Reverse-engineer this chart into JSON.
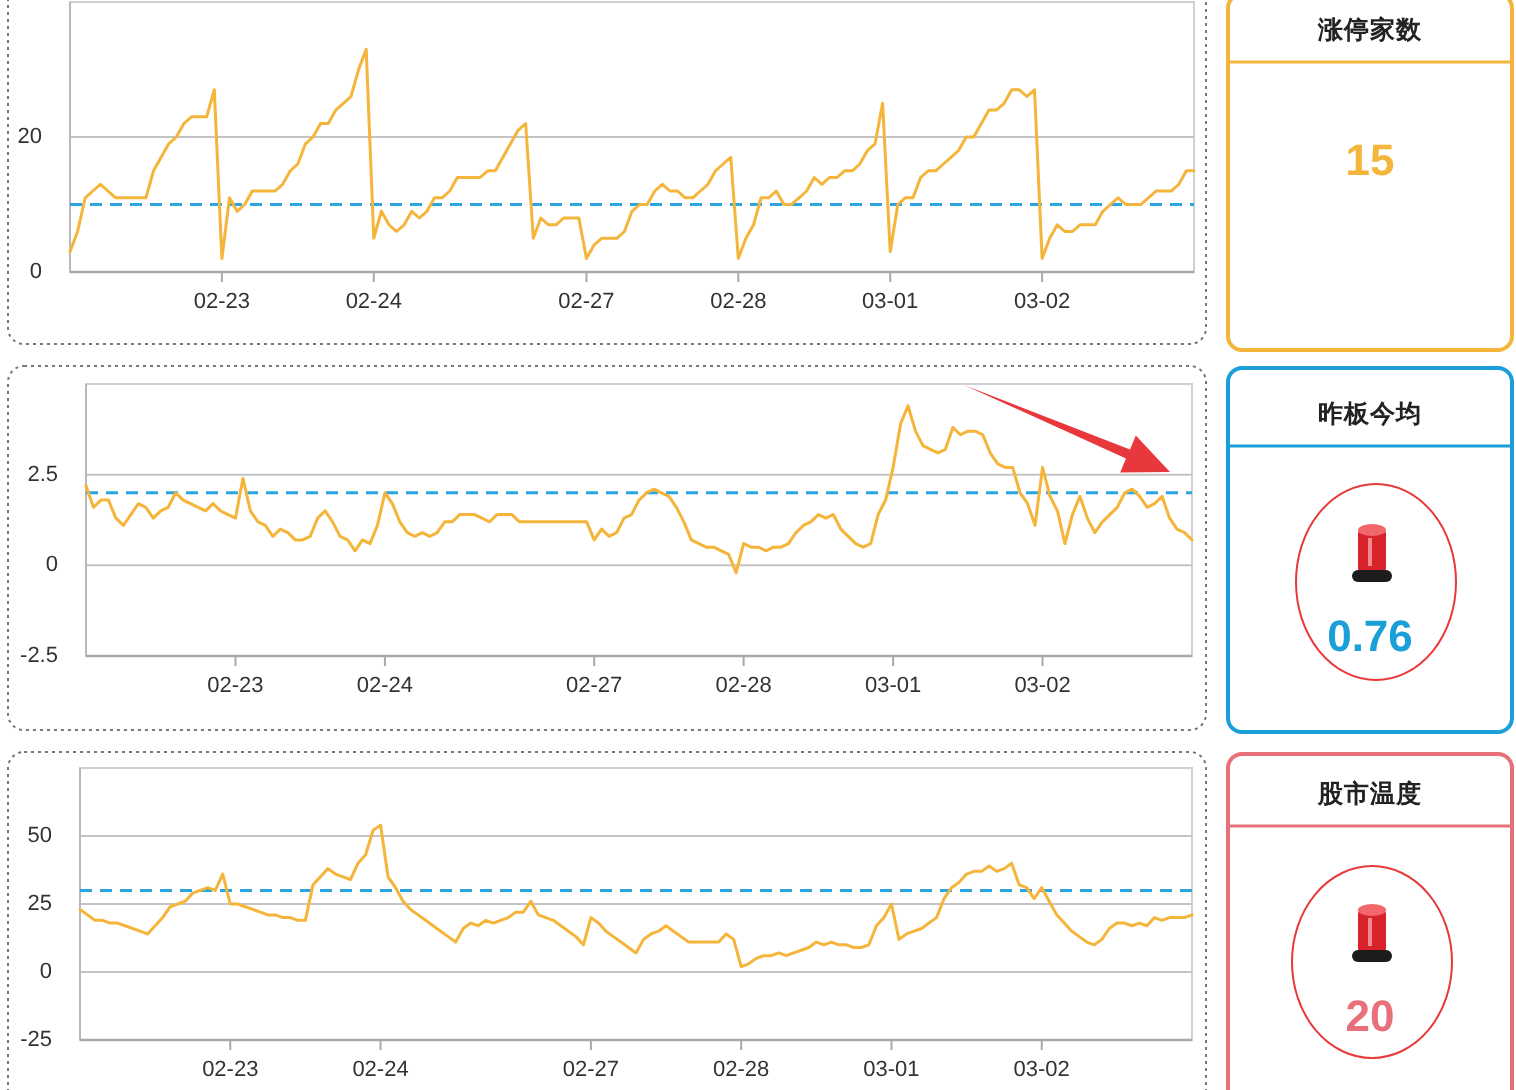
{
  "chart_data": [
    {
      "type": "line",
      "categories": [
        null,
        null,
        null,
        null,
        null,
        null,
        null,
        null,
        null,
        null,
        null,
        null,
        null,
        null,
        null,
        null,
        null,
        null,
        null,
        null,
        "02-23",
        null,
        null,
        null,
        null,
        null,
        null,
        null,
        null,
        null,
        null,
        null,
        null,
        null,
        null,
        null,
        null,
        null,
        null,
        null,
        "02-24",
        null,
        null,
        null,
        null,
        null,
        null,
        null,
        null,
        null,
        null,
        null,
        null,
        null,
        null,
        null,
        null,
        null,
        null,
        null,
        null,
        null,
        null,
        null,
        null,
        null,
        null,
        null,
        "02-27",
        null,
        null,
        null,
        null,
        null,
        null,
        null,
        null,
        null,
        null,
        null,
        null,
        null,
        null,
        null,
        null,
        null,
        null,
        null,
        "02-28",
        null,
        null,
        null,
        null,
        null,
        null,
        null,
        null,
        null,
        null,
        null,
        null,
        null,
        null,
        null,
        null,
        null,
        null,
        null,
        "03-01",
        null,
        null,
        null,
        null,
        null,
        null,
        null,
        null,
        null,
        null,
        null,
        null,
        null,
        null,
        null,
        null,
        null,
        null,
        null,
        "03-02",
        null,
        null,
        null,
        null,
        null,
        null,
        null,
        null,
        null,
        null,
        null,
        null,
        null,
        null,
        null,
        null,
        null,
        null,
        null,
        null
      ],
      "series": [
        {
          "color": "#f5b43a",
          "values": [
            3,
            6,
            11,
            12,
            13,
            12,
            11,
            11,
            11,
            11,
            11,
            15,
            17,
            19,
            20,
            22,
            23,
            23,
            23,
            27,
            2,
            11,
            9,
            10,
            12,
            12,
            12,
            12,
            13,
            15,
            16,
            19,
            20,
            22,
            22,
            24,
            25,
            26,
            30,
            33,
            5,
            9,
            7,
            6,
            7,
            9,
            8,
            9,
            11,
            11,
            12,
            14,
            14,
            14,
            14,
            15,
            15,
            17,
            19,
            21,
            22,
            5,
            8,
            7,
            7,
            8,
            8,
            8,
            2,
            4,
            5,
            5,
            5,
            6,
            9,
            10,
            10,
            12,
            13,
            12,
            12,
            11,
            11,
            12,
            13,
            15,
            16,
            17,
            2,
            5,
            7,
            11,
            11,
            12,
            10,
            10,
            11,
            12,
            14,
            13,
            14,
            14,
            15,
            15,
            16,
            18,
            19,
            25,
            3,
            10,
            11,
            11,
            14,
            15,
            15,
            16,
            17,
            18,
            20,
            20,
            22,
            24,
            24,
            25,
            27,
            27,
            26,
            27,
            2,
            5,
            7,
            6,
            6,
            7,
            7,
            7,
            9,
            10,
            11,
            10,
            10,
            10,
            11,
            12,
            12,
            12,
            13,
            15,
            15
          ]
        }
      ],
      "ylim": [
        0,
        40
      ],
      "yticks": [
        0,
        20
      ],
      "grid": "y",
      "ref_lines": [
        {
          "axis": "y",
          "value": 10,
          "color": "#2ba5e0",
          "line_style": "dashed"
        }
      ]
    },
    {
      "type": "other",
      "title": "涨停家数",
      "annotations": [
        "15"
      ]
    },
    {
      "type": "line",
      "categories": [
        null,
        null,
        null,
        null,
        null,
        null,
        null,
        null,
        null,
        null,
        null,
        null,
        null,
        null,
        null,
        null,
        null,
        null,
        null,
        null,
        "02-23",
        null,
        null,
        null,
        null,
        null,
        null,
        null,
        null,
        null,
        null,
        null,
        null,
        null,
        null,
        null,
        null,
        null,
        null,
        null,
        "02-24",
        null,
        null,
        null,
        null,
        null,
        null,
        null,
        null,
        null,
        null,
        null,
        null,
        null,
        null,
        null,
        null,
        null,
        null,
        null,
        null,
        null,
        null,
        null,
        null,
        null,
        null,
        null,
        "02-27",
        null,
        null,
        null,
        null,
        null,
        null,
        null,
        null,
        null,
        null,
        null,
        null,
        null,
        null,
        null,
        null,
        null,
        null,
        null,
        "02-28",
        null,
        null,
        null,
        null,
        null,
        null,
        null,
        null,
        null,
        null,
        null,
        null,
        null,
        null,
        null,
        null,
        null,
        null,
        null,
        "03-01",
        null,
        null,
        null,
        null,
        null,
        null,
        null,
        null,
        null,
        null,
        null,
        null,
        null,
        null,
        null,
        null,
        null,
        null,
        null,
        "03-02",
        null,
        null,
        null,
        null,
        null,
        null,
        null,
        null,
        null,
        null,
        null,
        null,
        null,
        null,
        null,
        null,
        null,
        null,
        null,
        null
      ],
      "series": [
        {
          "color": "#f5b43a",
          "values": [
            2.2,
            1.6,
            1.8,
            1.8,
            1.3,
            1.1,
            1.4,
            1.7,
            1.6,
            1.3,
            1.5,
            1.6,
            2.0,
            1.8,
            1.7,
            1.6,
            1.5,
            1.7,
            1.5,
            1.4,
            1.3,
            2.4,
            1.5,
            1.2,
            1.1,
            0.8,
            1.0,
            0.9,
            0.7,
            0.7,
            0.8,
            1.3,
            1.5,
            1.2,
            0.8,
            0.7,
            0.4,
            0.7,
            0.6,
            1.1,
            2.0,
            1.7,
            1.2,
            0.9,
            0.8,
            0.9,
            0.8,
            0.9,
            1.2,
            1.2,
            1.4,
            1.4,
            1.4,
            1.3,
            1.2,
            1.4,
            1.4,
            1.4,
            1.2,
            1.2,
            1.2,
            1.2,
            1.2,
            1.2,
            1.2,
            1.2,
            1.2,
            1.2,
            0.7,
            1.0,
            0.8,
            0.9,
            1.3,
            1.4,
            1.8,
            2.0,
            2.1,
            2.0,
            1.9,
            1.6,
            1.2,
            0.7,
            0.6,
            0.5,
            0.5,
            0.4,
            0.3,
            -0.2,
            0.6,
            0.5,
            0.5,
            0.4,
            0.5,
            0.5,
            0.6,
            0.9,
            1.1,
            1.2,
            1.4,
            1.3,
            1.4,
            1.0,
            0.8,
            0.6,
            0.5,
            0.6,
            1.4,
            1.8,
            2.7,
            3.9,
            4.4,
            3.7,
            3.3,
            3.2,
            3.1,
            3.2,
            3.8,
            3.6,
            3.7,
            3.7,
            3.6,
            3.1,
            2.8,
            2.7,
            2.7,
            2.0,
            1.7,
            1.1,
            2.7,
            1.9,
            1.5,
            0.6,
            1.4,
            1.9,
            1.3,
            0.9,
            1.2,
            1.4,
            1.6,
            2.0,
            2.1,
            1.9,
            1.6,
            1.7,
            1.9,
            1.3,
            1.0,
            0.9,
            0.7
          ]
        }
      ],
      "ylim": [
        -2.5,
        5
      ],
      "yticks": [
        -2.5,
        0,
        2.5
      ],
      "grid": "y",
      "ref_lines": [
        {
          "axis": "y",
          "value": 2,
          "color": "#2ba5e0",
          "line_style": "dashed"
        }
      ]
    },
    {
      "type": "other",
      "title": "昨板今均",
      "annotations": [
        "0.76"
      ]
    },
    {
      "type": "line",
      "categories": [
        null,
        null,
        null,
        null,
        null,
        null,
        null,
        null,
        null,
        null,
        null,
        null,
        null,
        null,
        null,
        null,
        null,
        null,
        null,
        null,
        "02-23",
        null,
        null,
        null,
        null,
        null,
        null,
        null,
        null,
        null,
        null,
        null,
        null,
        null,
        null,
        null,
        null,
        null,
        null,
        null,
        "02-24",
        null,
        null,
        null,
        null,
        null,
        null,
        null,
        null,
        null,
        null,
        null,
        null,
        null,
        null,
        null,
        null,
        null,
        null,
        null,
        null,
        null,
        null,
        null,
        null,
        null,
        null,
        null,
        "02-27",
        null,
        null,
        null,
        null,
        null,
        null,
        null,
        null,
        null,
        null,
        null,
        null,
        null,
        null,
        null,
        null,
        null,
        null,
        null,
        "02-28",
        null,
        null,
        null,
        null,
        null,
        null,
        null,
        null,
        null,
        null,
        null,
        null,
        null,
        null,
        null,
        null,
        null,
        null,
        null,
        "03-01",
        null,
        null,
        null,
        null,
        null,
        null,
        null,
        null,
        null,
        null,
        null,
        null,
        null,
        null,
        null,
        null,
        null,
        null,
        null,
        "03-02",
        null,
        null,
        null,
        null,
        null,
        null,
        null,
        null,
        null,
        null,
        null,
        null,
        null,
        null,
        null,
        null,
        null,
        null,
        null,
        null
      ],
      "series": [
        {
          "color": "#f5b43a",
          "values": [
            23,
            21,
            19,
            19,
            18,
            18,
            17,
            16,
            15,
            14,
            17,
            20,
            24,
            25,
            26,
            29,
            30,
            31,
            30,
            36,
            25,
            25,
            24,
            23,
            22,
            21,
            21,
            20,
            20,
            19,
            19,
            32,
            35,
            38,
            36,
            35,
            34,
            40,
            43,
            52,
            54,
            35,
            31,
            26,
            23,
            21,
            19,
            17,
            15,
            13,
            11,
            16,
            18,
            17,
            19,
            18,
            19,
            20,
            22,
            22,
            26,
            21,
            20,
            19,
            17,
            15,
            13,
            10,
            20,
            18,
            15,
            13,
            11,
            9,
            7,
            12,
            14,
            15,
            17,
            15,
            13,
            11,
            11,
            11,
            11,
            11,
            14,
            12,
            2,
            3,
            5,
            6,
            6,
            7,
            6,
            7,
            8,
            9,
            11,
            10,
            11,
            10,
            10,
            9,
            9,
            10,
            17,
            20,
            25,
            12,
            14,
            15,
            16,
            18,
            20,
            27,
            31,
            33,
            36,
            37,
            37,
            39,
            37,
            38,
            40,
            32,
            31,
            27,
            31,
            26,
            21,
            18,
            15,
            13,
            11,
            10,
            12,
            16,
            18,
            18,
            17,
            18,
            17,
            20,
            19,
            20,
            20,
            20,
            21
          ]
        }
      ],
      "ylim": [
        -25,
        75
      ],
      "yticks": [
        -25,
        0,
        25,
        50
      ],
      "grid": "y",
      "ref_lines": [
        {
          "axis": "y",
          "value": 30,
          "color": "#2ba5e0",
          "line_style": "dashed"
        }
      ]
    },
    {
      "type": "other",
      "title": "股市温度",
      "annotations": [
        "20"
      ]
    }
  ]
}
